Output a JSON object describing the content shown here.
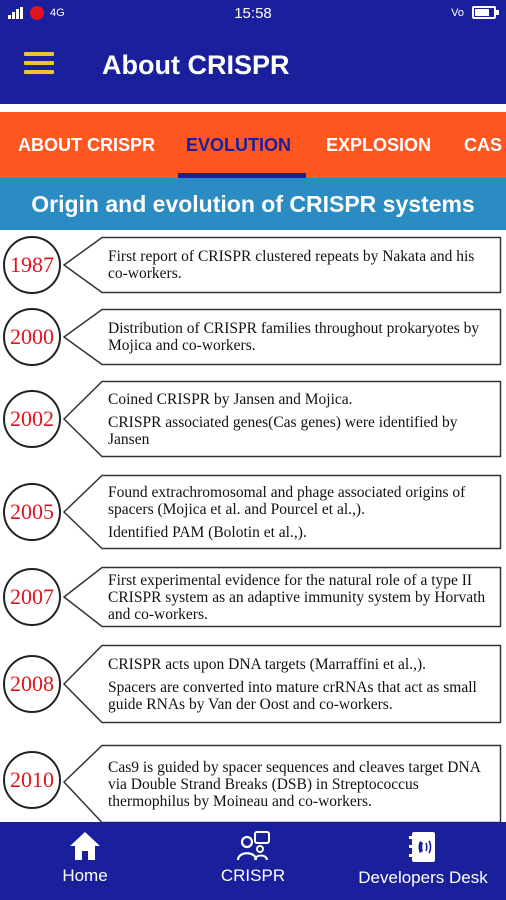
{
  "status_bar": {
    "left": "4G",
    "time": "15:58",
    "right": "Vo",
    "battery_level": 0.75
  },
  "app_bar": {
    "title": "About CRISPR",
    "menu_icon": "hamburger-menu-icon"
  },
  "tabs": [
    {
      "label": "ABOUT CRISPR",
      "active": false
    },
    {
      "label": "EVOLUTION",
      "active": true
    },
    {
      "label": "EXPLOSION",
      "active": false
    },
    {
      "label": "CAS",
      "active": false
    }
  ],
  "section_title": "Origin and evolution of CRISPR systems",
  "timeline": [
    {
      "year": "1987",
      "paragraphs": [
        "First report of CRISPR clustered repeats by Nakata and his co-workers."
      ]
    },
    {
      "year": "2000",
      "paragraphs": [
        "Distribution of CRISPR families throughout prokaryotes by Mojica and co-workers."
      ]
    },
    {
      "year": "2002",
      "paragraphs": [
        "Coined CRISPR by Jansen and Mojica.",
        "CRISPR associated genes(Cas genes) were identified by Jansen"
      ]
    },
    {
      "year": "2005",
      "paragraphs": [
        "Found extrachromosomal and phage associated origins of spacers  (Mojica et al. and Pourcel et al.,).",
        "Identified PAM  (Bolotin et al.,)."
      ]
    },
    {
      "year": "2007",
      "paragraphs": [
        "First experimental evidence for the natural role of a type II CRISPR system as an adaptive immunity system by Horvath and co-workers."
      ]
    },
    {
      "year": "2008",
      "paragraphs": [
        "CRISPR acts upon DNA targets (Marraffini  et al.,).",
        "Spacers are converted into mature crRNAs that act as small guide RNAs by Van der Oost and co-workers."
      ]
    },
    {
      "year": "2010",
      "paragraphs": [
        "Cas9 is guided by spacer sequences and cleaves target DNA via Double Strand Breaks (DSB) in Streptococcus thermophilus by Moineau and co-workers."
      ]
    }
  ],
  "bottom_nav": [
    {
      "label": "Home",
      "icon": "home-icon"
    },
    {
      "label": "CRISPR",
      "icon": "people-icon"
    },
    {
      "label": "Developers Desk",
      "icon": "contact-book-icon"
    }
  ],
  "colors": {
    "primary": "#1a1f9c",
    "tab_bar": "#ff5722",
    "section_header": "#2b8cc4",
    "year_text": "#e0141e",
    "menu_icon": "#f3c22b"
  }
}
